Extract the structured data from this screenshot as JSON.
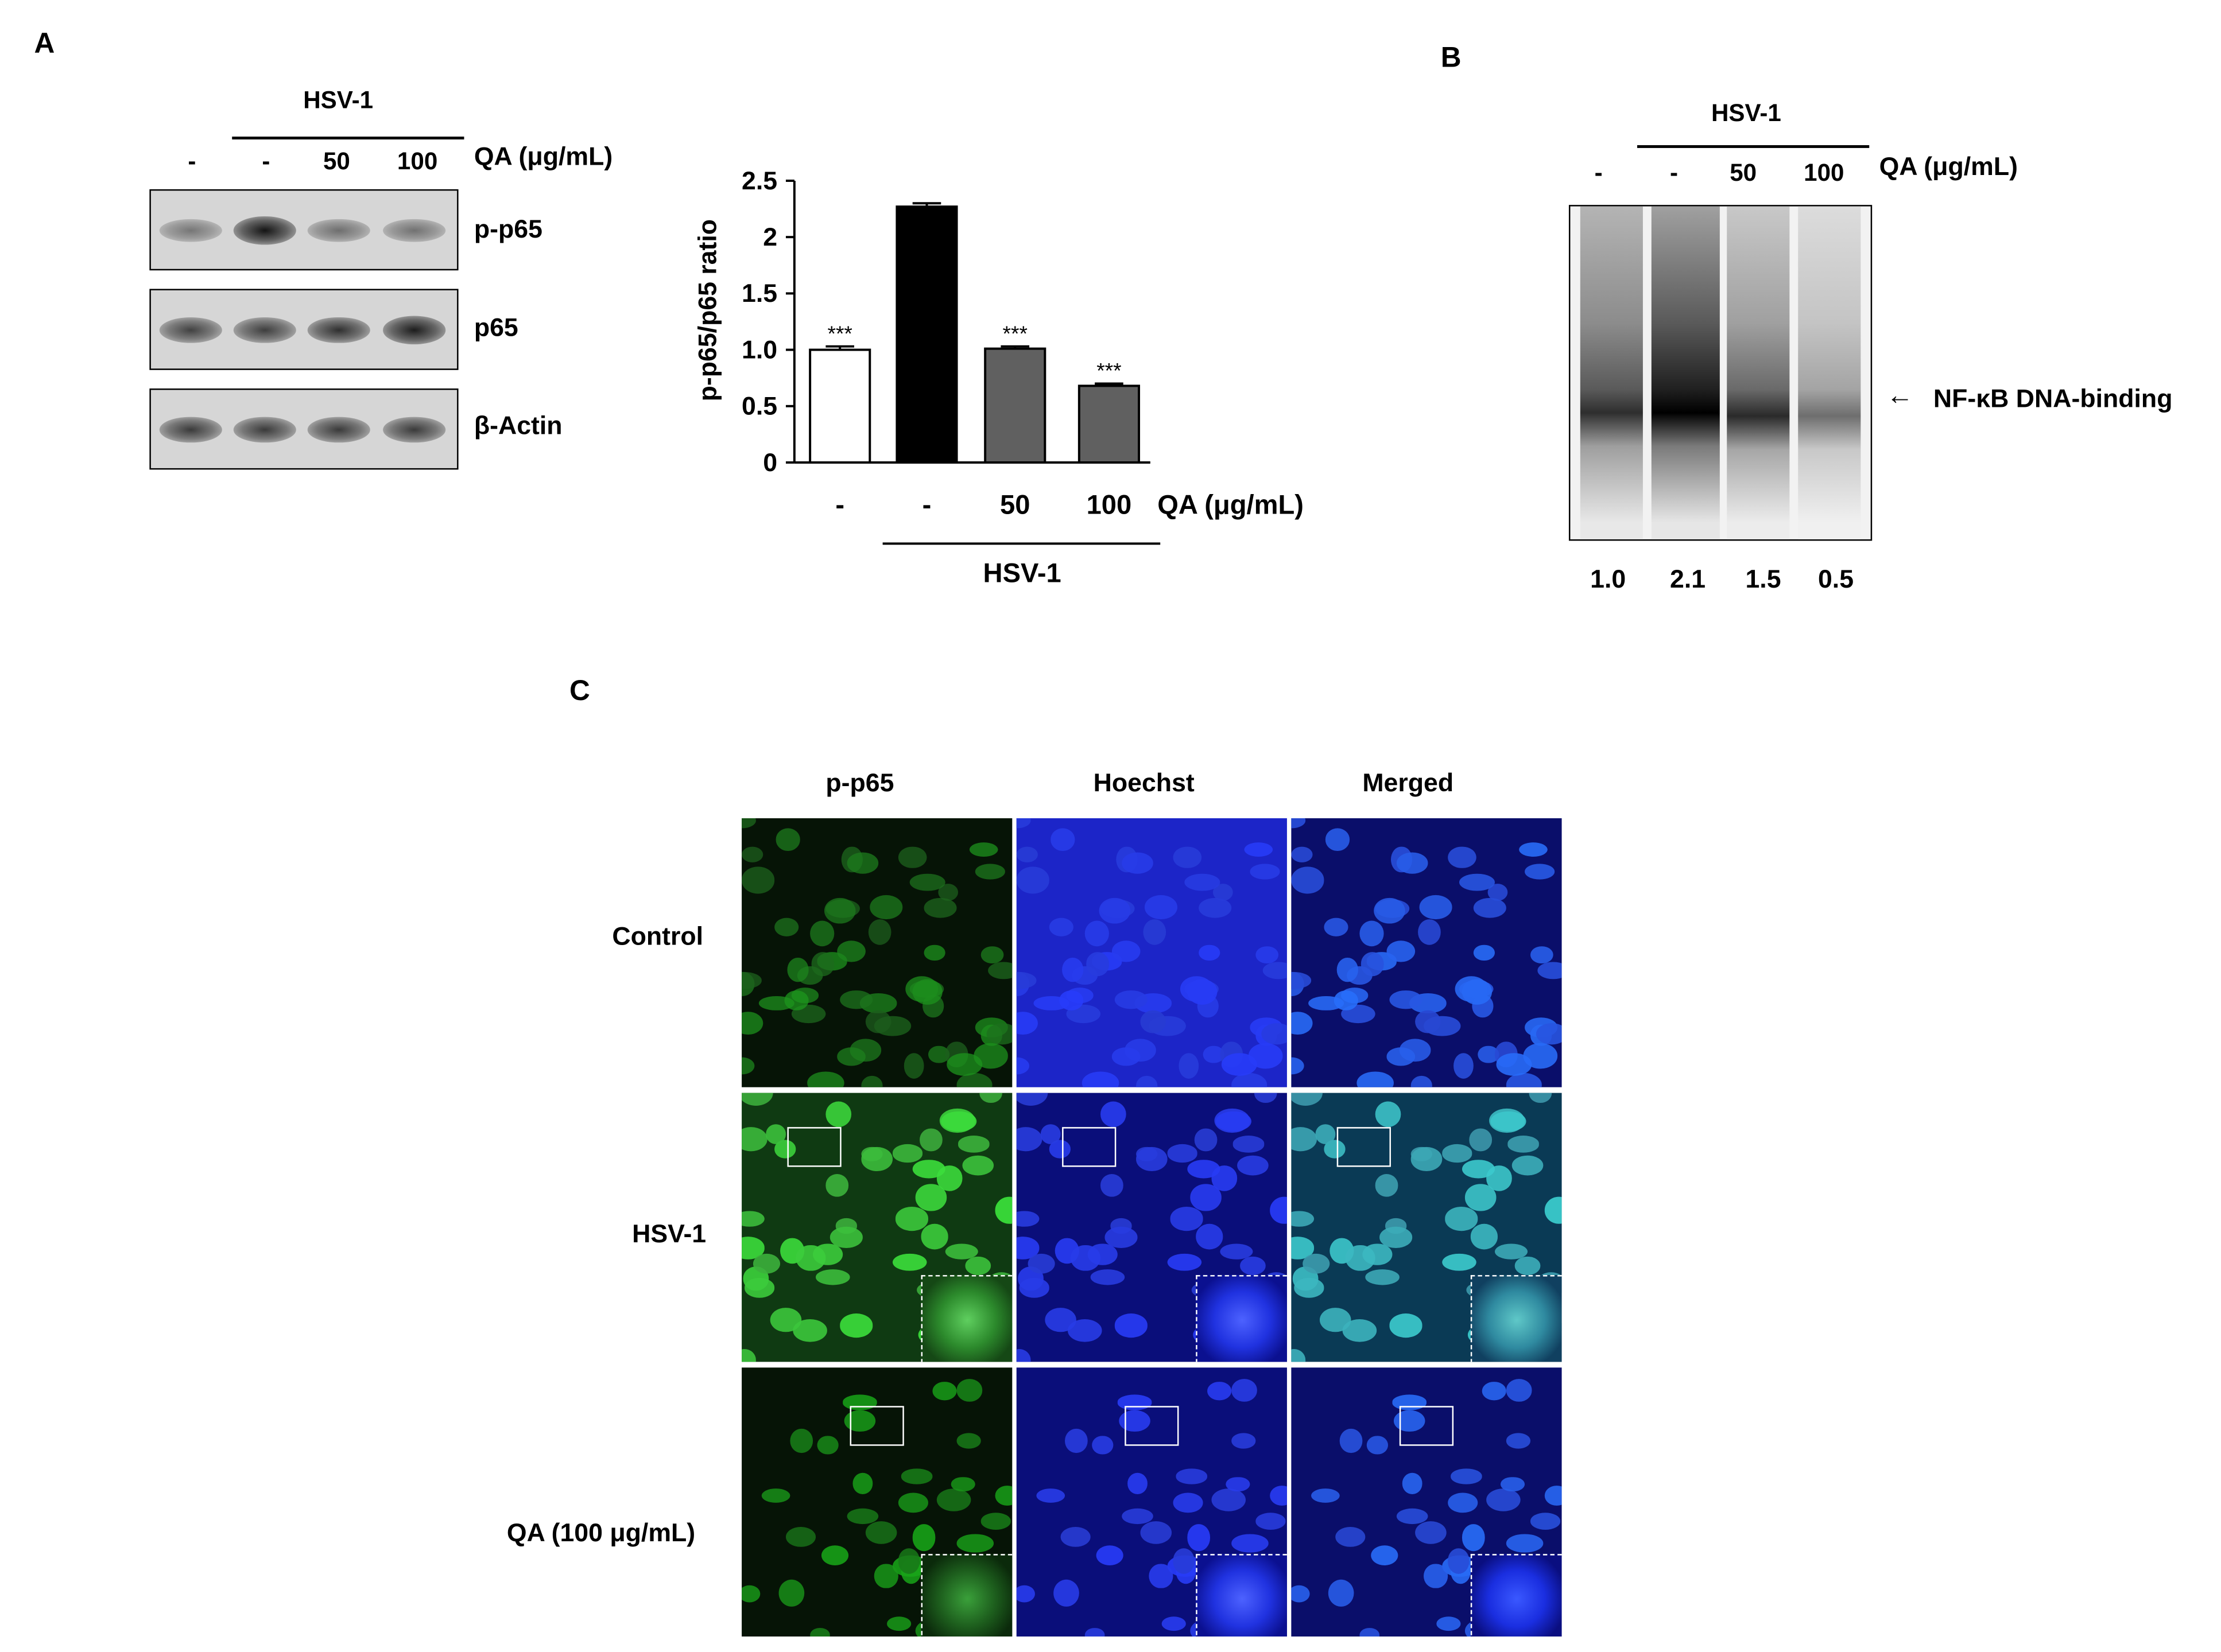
{
  "panel_a": {
    "letter": "A",
    "western": {
      "hsv_label": "HSV-1",
      "lanes": [
        "-",
        "-",
        "50",
        "100"
      ],
      "treatment_label": "QA (μg/mL)",
      "rows": [
        {
          "label": "p-p65",
          "intensities": [
            0.35,
            1.0,
            0.4,
            0.38
          ]
        },
        {
          "label": "p65",
          "intensities": [
            0.7,
            0.72,
            0.82,
            0.95
          ]
        },
        {
          "label": "β-Actin",
          "intensities": [
            0.75,
            0.75,
            0.75,
            0.75
          ]
        }
      ]
    }
  },
  "chart_data": {
    "type": "bar",
    "categories": [
      "-",
      "-",
      "50",
      "100"
    ],
    "values": [
      1.0,
      2.27,
      1.01,
      0.68
    ],
    "errors": [
      0.03,
      0.03,
      0.02,
      0.02
    ],
    "significance": [
      "***",
      "",
      "***",
      "***"
    ],
    "bar_colors": [
      "#ffffff",
      "#000000",
      "#606060",
      "#606060"
    ],
    "title": "",
    "xlabel": "",
    "ylabel": "p-p65/p65 ratio",
    "ylim": [
      0,
      2.5
    ],
    "yticks": [
      "0",
      "0.5",
      "1.0",
      "1.5",
      "2",
      "2.5"
    ],
    "ytick_values": [
      0,
      0.5,
      1.0,
      1.5,
      2.0,
      2.5
    ],
    "treatment_label": "QA (μg/mL)",
    "group_label": "HSV-1"
  },
  "panel_b": {
    "letter": "B",
    "hsv_label": "HSV-1",
    "lanes": [
      "-",
      "-",
      "50",
      "100"
    ],
    "treatment_label": "QA (μg/mL)",
    "band_label": "NF-κB DNA-binding",
    "arrow": "←",
    "quantification": [
      "1.0",
      "2.1",
      "1.5",
      "0.5"
    ]
  },
  "panel_c": {
    "letter": "C",
    "columns": [
      "p-p65",
      "Hoechst",
      "Merged"
    ],
    "rows": [
      "Control",
      "HSV-1",
      "QA (100 μg/mL)"
    ]
  }
}
